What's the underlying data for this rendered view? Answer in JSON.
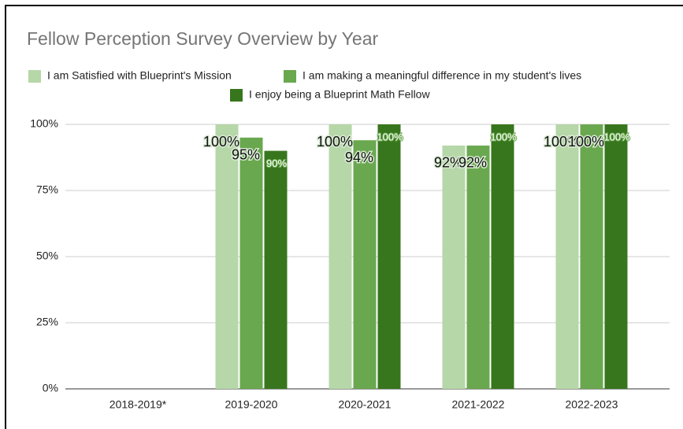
{
  "chart_data": {
    "type": "bar",
    "title": "Fellow Perception Survey Overview by Year",
    "categories": [
      "2018-2019*",
      "2019-2020",
      "2020-2021",
      "2021-2022",
      "2022-2023"
    ],
    "series": [
      {
        "name": "I am Satisfied with Blueprint's Mission",
        "color": "#b6d7a8",
        "values": [
          null,
          100,
          100,
          92,
          100
        ],
        "value_labels": [
          null,
          "100%",
          "100%",
          "92%",
          "100%"
        ]
      },
      {
        "name": "I am making a meaningful difference in my student's lives",
        "color": "#6aa84f",
        "values": [
          null,
          95,
          94,
          92,
          100
        ],
        "value_labels": [
          null,
          "95%",
          "94%",
          "92%",
          "100%"
        ]
      },
      {
        "name": "I enjoy being a Blueprint Math Fellow",
        "color": "#38761d",
        "values": [
          null,
          90,
          100,
          100,
          100
        ],
        "value_labels": [
          null,
          "90%",
          "100%",
          "100%",
          "100%"
        ]
      }
    ],
    "ylim": [
      0,
      100
    ],
    "yticks": [
      {
        "value": 0,
        "label": "0%"
      },
      {
        "value": 25,
        "label": "25%"
      },
      {
        "value": 50,
        "label": "50%"
      },
      {
        "value": 75,
        "label": "75%"
      },
      {
        "value": 100,
        "label": "100%"
      }
    ],
    "grid": true
  }
}
